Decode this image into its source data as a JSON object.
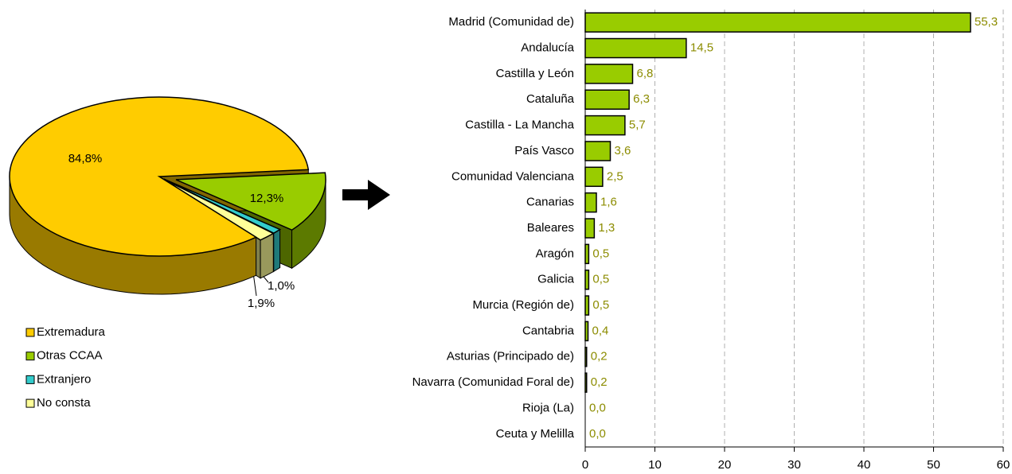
{
  "chart_data": [
    {
      "type": "pie",
      "categories": [
        "Extremadura",
        "Otras CCAA",
        "Extranjero",
        "No consta"
      ],
      "values": [
        84.8,
        12.3,
        1.0,
        1.9
      ],
      "value_labels": [
        "84,8%",
        "12,3%",
        "1,0%",
        "1,9%"
      ],
      "colors": [
        "#ffcc00",
        "#99cc00",
        "#33cccc",
        "#ffff99"
      ]
    },
    {
      "type": "bar",
      "orientation": "horizontal",
      "categories": [
        "Madrid (Comunidad de)",
        "Andalucía",
        "Castilla y León",
        "Cataluña",
        "Castilla - La Mancha",
        "País Vasco",
        "Comunidad Valenciana",
        "Canarias",
        "Baleares",
        "Aragón",
        "Galicia",
        "Murcia (Región de)",
        "Cantabria",
        "Asturias (Principado de)",
        "Navarra (Comunidad Foral de)",
        "Rioja (La)",
        "Ceuta y Melilla"
      ],
      "values": [
        55.3,
        14.5,
        6.8,
        6.3,
        5.7,
        3.6,
        2.5,
        1.6,
        1.3,
        0.5,
        0.5,
        0.5,
        0.4,
        0.2,
        0.2,
        0.0,
        0.0
      ],
      "value_labels": [
        "55,3",
        "14,5",
        "6,8",
        "6,3",
        "5,7",
        "3,6",
        "2,5",
        "1,6",
        "1,3",
        "0,5",
        "0,5",
        "0,5",
        "0,4",
        "0,2",
        "0,2",
        "0,0",
        "0,0"
      ],
      "color": "#99cc00",
      "xlim": [
        0,
        60
      ],
      "xticks": [
        0,
        10,
        20,
        30,
        40,
        50,
        60
      ],
      "grid": true
    }
  ]
}
